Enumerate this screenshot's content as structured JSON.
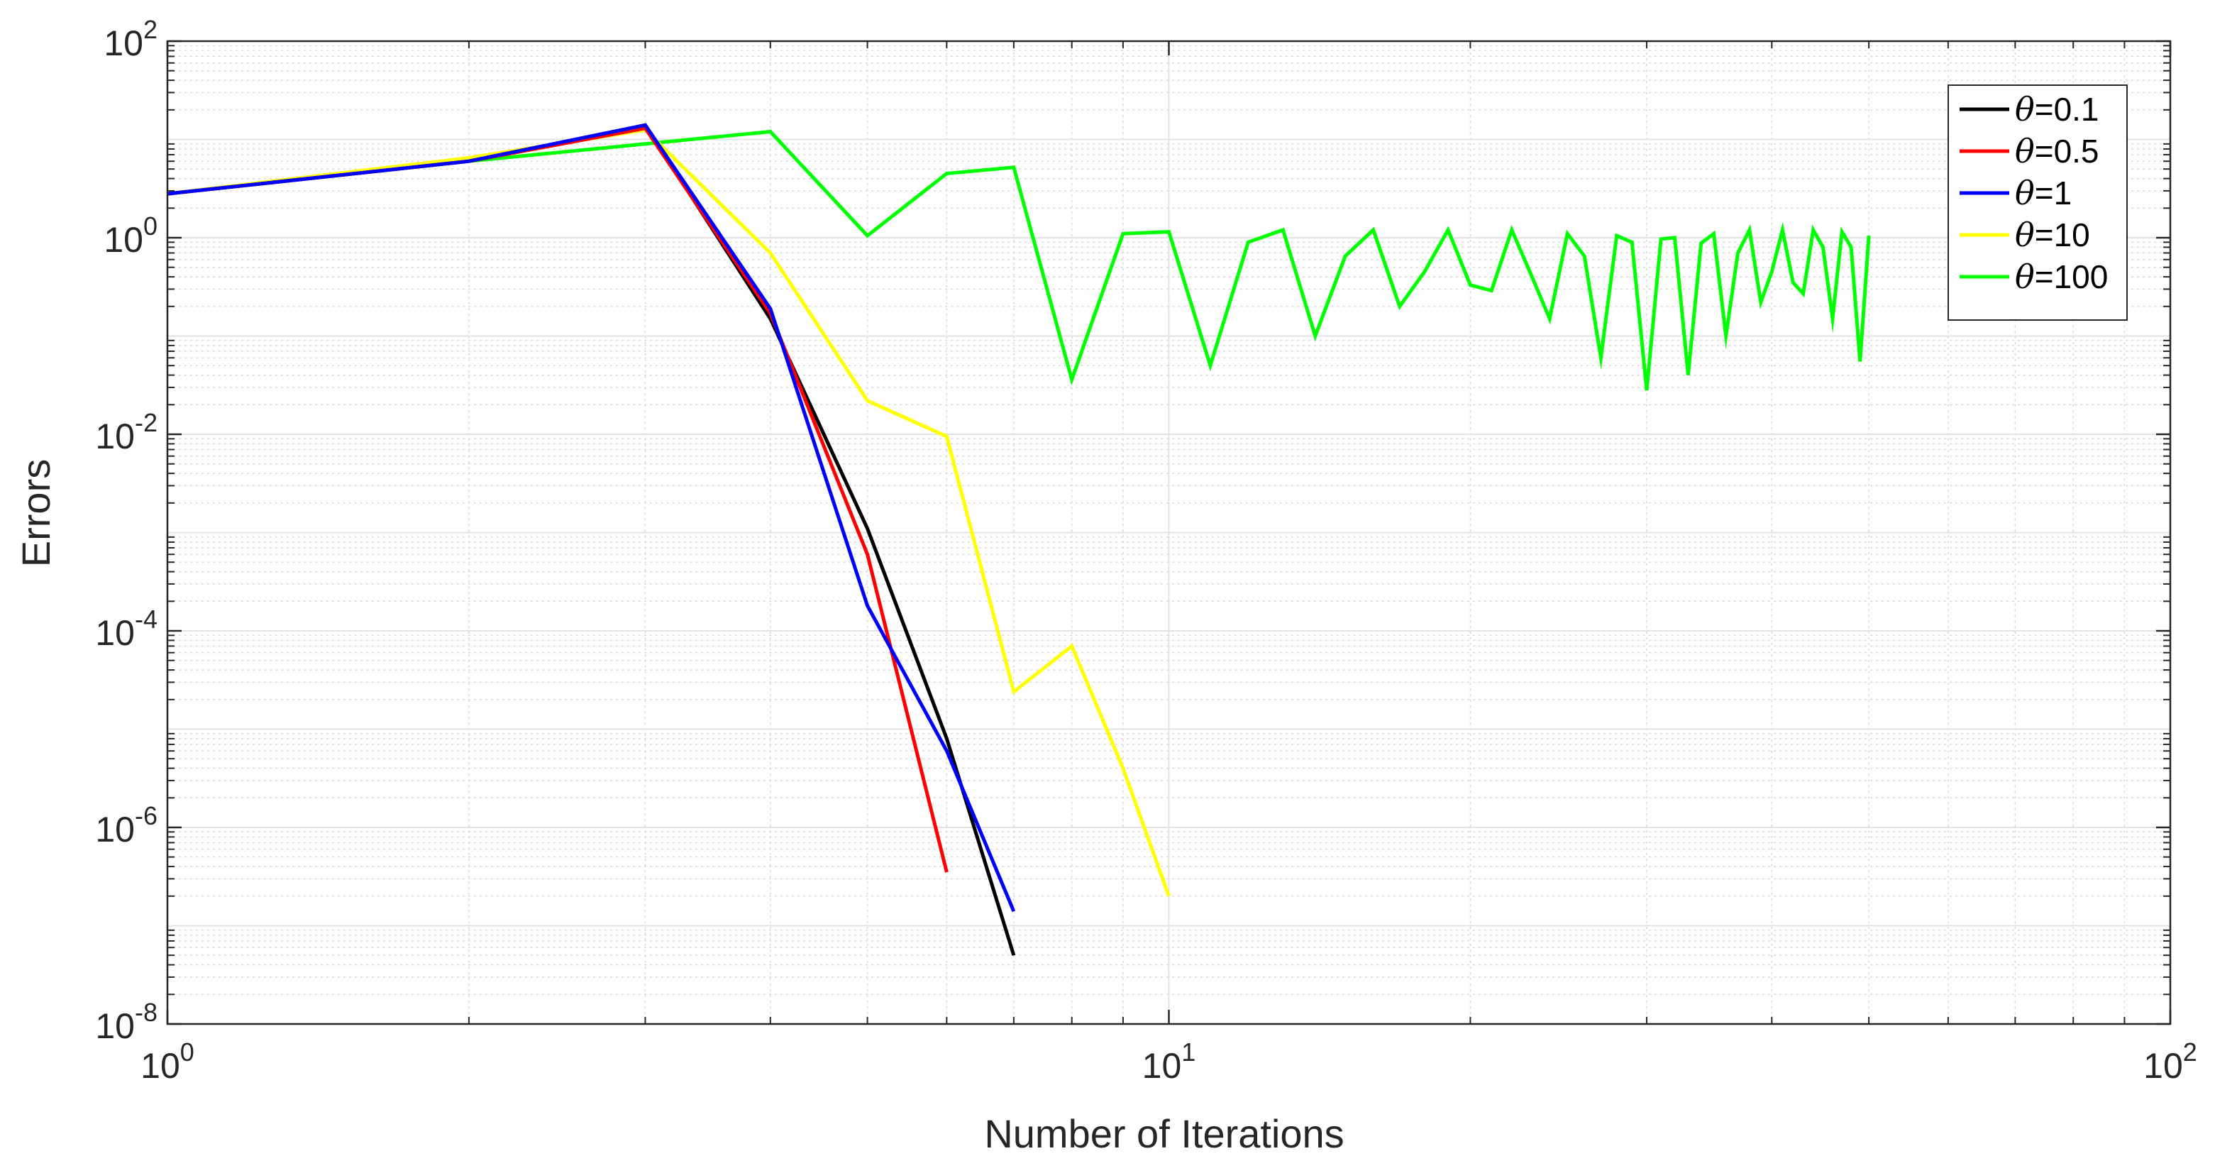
{
  "chart_data": {
    "type": "line",
    "title": "",
    "xlabel": "Number of Iterations",
    "ylabel": "Errors",
    "xscale": "log",
    "yscale": "log",
    "xlim": [
      1,
      100
    ],
    "ylim": [
      1e-08,
      100
    ],
    "grid": true,
    "minor_grid": true,
    "legend_position": "top-right",
    "x_ticks": [
      {
        "value": 1,
        "base": "10",
        "exp": "0"
      },
      {
        "value": 10,
        "base": "10",
        "exp": "1"
      },
      {
        "value": 100,
        "base": "10",
        "exp": "2"
      }
    ],
    "y_ticks": [
      {
        "value": 1e-08,
        "base": "10",
        "exp": "-8"
      },
      {
        "value": 1e-06,
        "base": "10",
        "exp": "-6"
      },
      {
        "value": 0.0001,
        "base": "10",
        "exp": "-4"
      },
      {
        "value": 0.01,
        "base": "10",
        "exp": "-2"
      },
      {
        "value": 1,
        "base": "10",
        "exp": "0"
      },
      {
        "value": 100,
        "base": "10",
        "exp": "2"
      }
    ],
    "series": [
      {
        "name": "θ=0.1",
        "symbol": "θ",
        "label_suffix": "=0.1",
        "color": "#000000",
        "x": [
          1,
          2,
          3,
          4,
          5,
          6,
          7
        ],
        "y": [
          2.8,
          6,
          14,
          0.15,
          0.0011,
          8e-06,
          5e-08
        ]
      },
      {
        "name": "θ=0.5",
        "symbol": "θ",
        "label_suffix": "=0.5",
        "color": "#ff0000",
        "x": [
          1,
          2,
          3,
          4,
          5,
          6
        ],
        "y": [
          2.8,
          6,
          13,
          0.17,
          0.0006,
          3.5e-07
        ]
      },
      {
        "name": "θ=1",
        "symbol": "θ",
        "label_suffix": "=1",
        "color": "#0000ff",
        "x": [
          1,
          2,
          3,
          4,
          5,
          6,
          7
        ],
        "y": [
          2.8,
          6,
          14,
          0.19,
          0.00018,
          6e-06,
          1.4e-07
        ]
      },
      {
        "name": "θ=10",
        "symbol": "θ",
        "label_suffix": "=10",
        "color": "#ffff00",
        "x": [
          1,
          2,
          3,
          4,
          5,
          6,
          7,
          8,
          9,
          10
        ],
        "y": [
          2.8,
          6.5,
          12.5,
          0.7,
          0.022,
          0.0095,
          2.4e-05,
          7e-05,
          4e-06,
          2e-07
        ]
      },
      {
        "name": "θ=100",
        "symbol": "θ",
        "label_suffix": "=100",
        "color": "#00ff00",
        "x": [
          1,
          2,
          3,
          4,
          5,
          6,
          7,
          8,
          9,
          10,
          11,
          12,
          13,
          14,
          15,
          16,
          17,
          18,
          19,
          20,
          21,
          22,
          23,
          24,
          25,
          26,
          27,
          28,
          29,
          30,
          31,
          32,
          33,
          34,
          35,
          36,
          37,
          38,
          39,
          40,
          41,
          42,
          43,
          44,
          45,
          46,
          47,
          48,
          49,
          50
        ],
        "y": [
          2.8,
          6,
          9,
          12,
          1.05,
          4.5,
          5.2,
          0.036,
          1.1,
          1.15,
          0.05,
          0.9,
          1.2,
          0.1,
          0.65,
          1.2,
          0.2,
          0.45,
          1.2,
          0.33,
          0.29,
          1.2,
          0.42,
          0.15,
          1.1,
          0.65,
          0.06,
          1.05,
          0.9,
          0.028,
          0.97,
          1.0,
          0.04,
          0.88,
          1.1,
          0.1,
          0.7,
          1.2,
          0.22,
          0.45,
          1.2,
          0.35,
          0.27,
          1.2,
          0.8,
          0.15,
          1.15,
          0.8,
          0.055,
          1.05
        ]
      }
    ]
  }
}
